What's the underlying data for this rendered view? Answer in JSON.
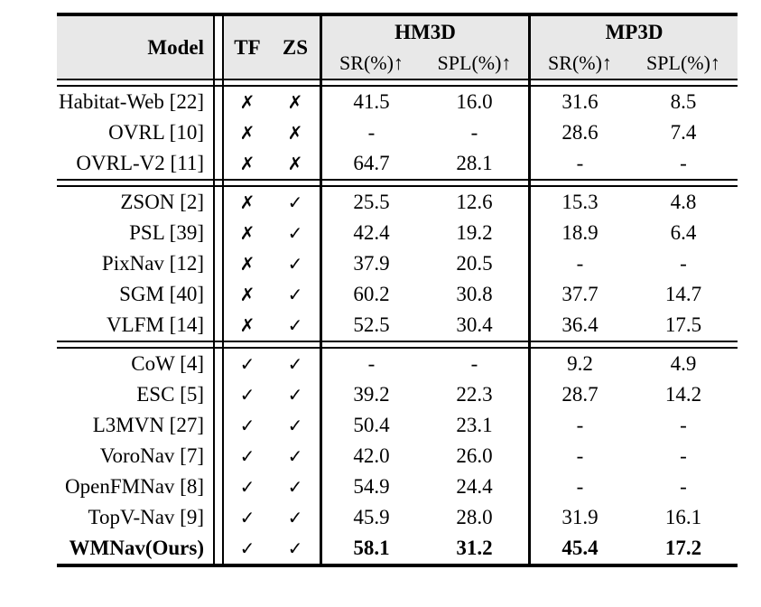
{
  "page": {
    "background": "#ffffff"
  },
  "table": {
    "colors": {
      "header_bg": "#e8e8e8",
      "rule": "#000000",
      "text": "#000000"
    },
    "header": {
      "model": "Model",
      "tf": "TF",
      "zs": "ZS",
      "groups": [
        {
          "label": "HM3D",
          "sr": "SR(%)↑",
          "spl": "SPL(%)↑"
        },
        {
          "label": "MP3D",
          "sr": "SR(%)↑",
          "spl": "SPL(%)↑"
        }
      ]
    },
    "marks": {
      "check": "✓",
      "cross": "✗"
    },
    "sections": [
      {
        "name": "supervised",
        "rows": [
          {
            "model": "Habitat-Web [22]",
            "tf": "cross",
            "zs": "cross",
            "cells": [
              "41.5",
              "16.0",
              "31.6",
              "8.5"
            ],
            "bold": false
          },
          {
            "model": "OVRL [10]",
            "tf": "cross",
            "zs": "cross",
            "cells": [
              "-",
              "-",
              "28.6",
              "7.4"
            ],
            "bold": false
          },
          {
            "model": "OVRL-V2 [11]",
            "tf": "cross",
            "zs": "cross",
            "cells": [
              "64.7",
              "28.1",
              "-",
              "-"
            ],
            "bold": false
          }
        ]
      },
      {
        "name": "zero-shot",
        "rows": [
          {
            "model": "ZSON [2]",
            "tf": "cross",
            "zs": "check",
            "cells": [
              "25.5",
              "12.6",
              "15.3",
              "4.8"
            ],
            "bold": false
          },
          {
            "model": "PSL [39]",
            "tf": "cross",
            "zs": "check",
            "cells": [
              "42.4",
              "19.2",
              "18.9",
              "6.4"
            ],
            "bold": false
          },
          {
            "model": "PixNav [12]",
            "tf": "cross",
            "zs": "check",
            "cells": [
              "37.9",
              "20.5",
              "-",
              "-"
            ],
            "bold": false
          },
          {
            "model": "SGM [40]",
            "tf": "cross",
            "zs": "check",
            "cells": [
              "60.2",
              "30.8",
              "37.7",
              "14.7"
            ],
            "bold": false
          },
          {
            "model": "VLFM [14]",
            "tf": "cross",
            "zs": "check",
            "cells": [
              "52.5",
              "30.4",
              "36.4",
              "17.5"
            ],
            "bold": false
          }
        ]
      },
      {
        "name": "training-free-zero-shot",
        "rows": [
          {
            "model": "CoW [4]",
            "tf": "check",
            "zs": "check",
            "cells": [
              "-",
              "-",
              "9.2",
              "4.9"
            ],
            "bold": false
          },
          {
            "model": "ESC [5]",
            "tf": "check",
            "zs": "check",
            "cells": [
              "39.2",
              "22.3",
              "28.7",
              "14.2"
            ],
            "bold": false
          },
          {
            "model": "L3MVN [27]",
            "tf": "check",
            "zs": "check",
            "cells": [
              "50.4",
              "23.1",
              "-",
              "-"
            ],
            "bold": false
          },
          {
            "model": "VoroNav [7]",
            "tf": "check",
            "zs": "check",
            "cells": [
              "42.0",
              "26.0",
              "-",
              "-"
            ],
            "bold": false
          },
          {
            "model": "OpenFMNav [8]",
            "tf": "check",
            "zs": "check",
            "cells": [
              "54.9",
              "24.4",
              "-",
              "-"
            ],
            "bold": false
          },
          {
            "model": "TopV-Nav [9]",
            "tf": "check",
            "zs": "check",
            "cells": [
              "45.9",
              "28.0",
              "31.9",
              "16.1"
            ],
            "bold": false
          },
          {
            "model": "WMNav(Ours)",
            "tf": "check",
            "zs": "check",
            "cells": [
              "58.1",
              "31.2",
              "45.4",
              "17.2"
            ],
            "bold": true
          }
        ]
      }
    ]
  }
}
